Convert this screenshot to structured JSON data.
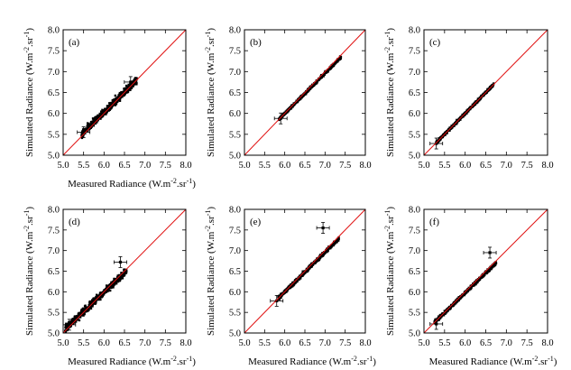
{
  "chart_data": [
    {
      "type": "scatter",
      "panel_label": "(a)",
      "xlabel": "Measured Radiance (W.m",
      "ylabel": "Simulated Radiance (W.m",
      "unit_exp": "-2",
      "unit_tail": ".sr",
      "unit_exp2": "-1",
      "unit_close": ")",
      "xlim": [
        5.0,
        8.0
      ],
      "ylim": [
        5.0,
        8.0
      ],
      "xticks": [
        "5.0",
        "5.5",
        "6.0",
        "6.5",
        "7.0",
        "7.5",
        "8.0"
      ],
      "yticks": [
        "5.0",
        "5.5",
        "6.0",
        "6.5",
        "7.0",
        "7.5",
        "8.0"
      ],
      "reference_line": "y=x",
      "cloud": {
        "x_start": 5.45,
        "x_end": 6.8,
        "y_start": 5.5,
        "y_end": 6.8,
        "spread": 0.14
      },
      "highlighted": [
        {
          "x": 5.5,
          "y": 5.55
        },
        {
          "x": 6.65,
          "y": 6.75
        }
      ]
    },
    {
      "type": "scatter",
      "panel_label": "(b)",
      "xlabel": "",
      "ylabel": "Simulated Radiance (W.m",
      "unit_exp": "-2",
      "unit_tail": ".sr",
      "unit_exp2": "-1",
      "unit_close": ")",
      "xlim": [
        5.0,
        8.0
      ],
      "ylim": [
        5.0,
        8.0
      ],
      "xticks": [
        "5.0",
        "5.5",
        "6.0",
        "6.5",
        "7.0",
        "7.5",
        "8.0"
      ],
      "yticks": [
        "5.0",
        "5.5",
        "6.0",
        "6.5",
        "7.0",
        "7.5",
        "8.0"
      ],
      "reference_line": "y=x",
      "cloud": {
        "x_start": 5.85,
        "x_end": 7.4,
        "y_start": 5.85,
        "y_end": 7.35,
        "spread": 0.05
      },
      "highlighted": [
        {
          "x": 5.9,
          "y": 5.88
        }
      ]
    },
    {
      "type": "scatter",
      "panel_label": "(c)",
      "xlabel": "",
      "ylabel": "Simulated Radiance (W.m",
      "unit_exp": "-2",
      "unit_tail": ".sr",
      "unit_exp2": "-1",
      "unit_close": ")",
      "xlim": [
        5.0,
        8.0
      ],
      "ylim": [
        5.0,
        8.0
      ],
      "xticks": [
        "5.0",
        "5.5",
        "6.0",
        "6.5",
        "7.0",
        "7.5",
        "8.0"
      ],
      "yticks": [
        "5.0",
        "5.5",
        "6.0",
        "6.5",
        "7.0",
        "7.5",
        "8.0"
      ],
      "reference_line": "y=x",
      "cloud": {
        "x_start": 5.3,
        "x_end": 6.7,
        "y_start": 5.3,
        "y_end": 6.7,
        "spread": 0.05
      },
      "highlighted": [
        {
          "x": 5.3,
          "y": 5.28
        }
      ]
    },
    {
      "type": "scatter",
      "panel_label": "(d)",
      "xlabel": "Measured Radiance (W.m",
      "ylabel": "Simulated Radiance (W.m",
      "unit_exp": "-2",
      "unit_tail": ".sr",
      "unit_exp2": "-1",
      "unit_close": ")",
      "xlim": [
        5.0,
        8.0
      ],
      "ylim": [
        5.0,
        8.0
      ],
      "xticks": [
        "5.0",
        "5.5",
        "6.0",
        "6.5",
        "7.0",
        "7.5",
        "8.0"
      ],
      "yticks": [
        "5.0",
        "5.5",
        "6.0",
        "6.5",
        "7.0",
        "7.5",
        "8.0"
      ],
      "reference_line": "y=x",
      "cloud": {
        "x_start": 5.05,
        "x_end": 6.55,
        "y_start": 5.1,
        "y_end": 6.5,
        "spread": 0.14
      },
      "highlighted": [
        {
          "x": 5.15,
          "y": 5.2
        },
        {
          "x": 6.4,
          "y": 6.72
        }
      ]
    },
    {
      "type": "scatter",
      "panel_label": "(e)",
      "xlabel": "Measured Radiance (W.m",
      "ylabel": "Simulated Radiance (W.m",
      "unit_exp": "-2",
      "unit_tail": ".sr",
      "unit_exp2": "-1",
      "unit_close": ")",
      "xlim": [
        5.0,
        8.0
      ],
      "ylim": [
        5.0,
        8.0
      ],
      "xticks": [
        "5.0",
        "5.5",
        "6.0",
        "6.5",
        "7.0",
        "7.5",
        "8.0"
      ],
      "yticks": [
        "5.0",
        "5.5",
        "6.0",
        "6.5",
        "7.0",
        "7.5",
        "8.0"
      ],
      "reference_line": "y=x",
      "cloud": {
        "x_start": 5.85,
        "x_end": 7.35,
        "y_start": 5.85,
        "y_end": 7.3,
        "spread": 0.07
      },
      "highlighted": [
        {
          "x": 5.8,
          "y": 5.78
        },
        {
          "x": 6.95,
          "y": 7.55
        }
      ]
    },
    {
      "type": "scatter",
      "panel_label": "(f)",
      "xlabel": "Measured Radiance (W.m",
      "ylabel": "Simulated Radiance (W.m",
      "unit_exp": "-2",
      "unit_tail": ".sr",
      "unit_exp2": "-1",
      "unit_close": ")",
      "xlim": [
        5.0,
        8.0
      ],
      "ylim": [
        5.0,
        8.0
      ],
      "xticks": [
        "5.0",
        "5.5",
        "6.0",
        "6.5",
        "7.0",
        "7.5",
        "8.0"
      ],
      "yticks": [
        "5.0",
        "5.5",
        "6.0",
        "6.5",
        "7.0",
        "7.5",
        "8.0"
      ],
      "reference_line": "y=x",
      "cloud": {
        "x_start": 5.25,
        "x_end": 6.75,
        "y_start": 5.25,
        "y_end": 6.7,
        "spread": 0.06
      },
      "highlighted": [
        {
          "x": 5.3,
          "y": 5.22
        },
        {
          "x": 6.6,
          "y": 6.95
        }
      ]
    }
  ],
  "colors": {
    "reference_line": "#e01010",
    "points": "#000000"
  }
}
